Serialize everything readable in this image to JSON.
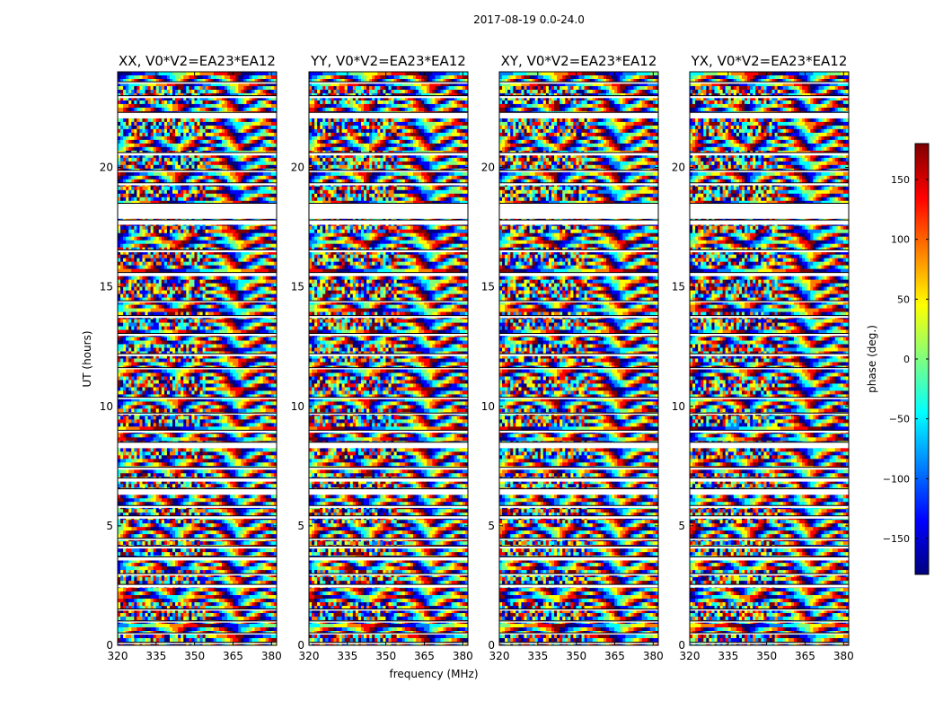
{
  "chart_data": {
    "type": "heatmap",
    "title": "2017-08-19 0.0-24.0",
    "xlabel": "frequency (MHz)",
    "ylabel": "UT (hours)",
    "xlim": [
      320,
      382
    ],
    "ylim": [
      0,
      24
    ],
    "x_ticks": [
      320,
      335,
      350,
      365,
      380
    ],
    "y_ticks": [
      0,
      5,
      10,
      15,
      20
    ],
    "panels": [
      {
        "title": "XX, V0*V2=EA23*EA12"
      },
      {
        "title": "YY, V0*V2=EA23*EA12"
      },
      {
        "title": "XY, V0*V2=EA23*EA12"
      },
      {
        "title": "YX, V0*V2=EA23*EA12"
      }
    ],
    "colorbar": {
      "label": "phase (deg.)",
      "range": [
        -180,
        180
      ],
      "ticks": [
        -150,
        -100,
        -50,
        0,
        50,
        100,
        150
      ],
      "tick_labels": [
        "−150",
        "−100",
        "−50",
        "0",
        "50",
        "100",
        "150"
      ],
      "colors": [
        "#00007f",
        "#0000ff",
        "#007fff",
        "#00ffff",
        "#7fff7f",
        "#ffff00",
        "#ff7f00",
        "#ff0000",
        "#7f0000"
      ]
    },
    "data_gaps_hours": [
      [
        0.05,
        0.12
      ],
      [
        0.45,
        0.52
      ],
      [
        0.95,
        1.02
      ],
      [
        1.45,
        1.52
      ],
      [
        2.42,
        2.55
      ],
      [
        2.92,
        3.0
      ],
      [
        3.55,
        3.7
      ],
      [
        4.05,
        4.15
      ],
      [
        4.4,
        4.48
      ],
      [
        5.3,
        5.42
      ],
      [
        5.75,
        5.85
      ],
      [
        6.3,
        6.55
      ],
      [
        6.85,
        7.0
      ],
      [
        7.35,
        7.45
      ],
      [
        8.25,
        8.5
      ],
      [
        8.9,
        9.0
      ],
      [
        9.65,
        9.72
      ],
      [
        10.3,
        10.38
      ],
      [
        11.55,
        11.62
      ],
      [
        12.1,
        12.2
      ],
      [
        12.95,
        13.05
      ],
      [
        13.7,
        13.8
      ],
      [
        14.35,
        14.42
      ],
      [
        15.45,
        15.6
      ],
      [
        16.45,
        16.55
      ],
      [
        17.6,
        17.8
      ],
      [
        17.85,
        18.5
      ],
      [
        19.25,
        19.35
      ],
      [
        19.8,
        19.88
      ],
      [
        20.5,
        20.62
      ],
      [
        22.05,
        22.3
      ],
      [
        22.9,
        23.0
      ],
      [
        23.5,
        23.58
      ]
    ]
  }
}
